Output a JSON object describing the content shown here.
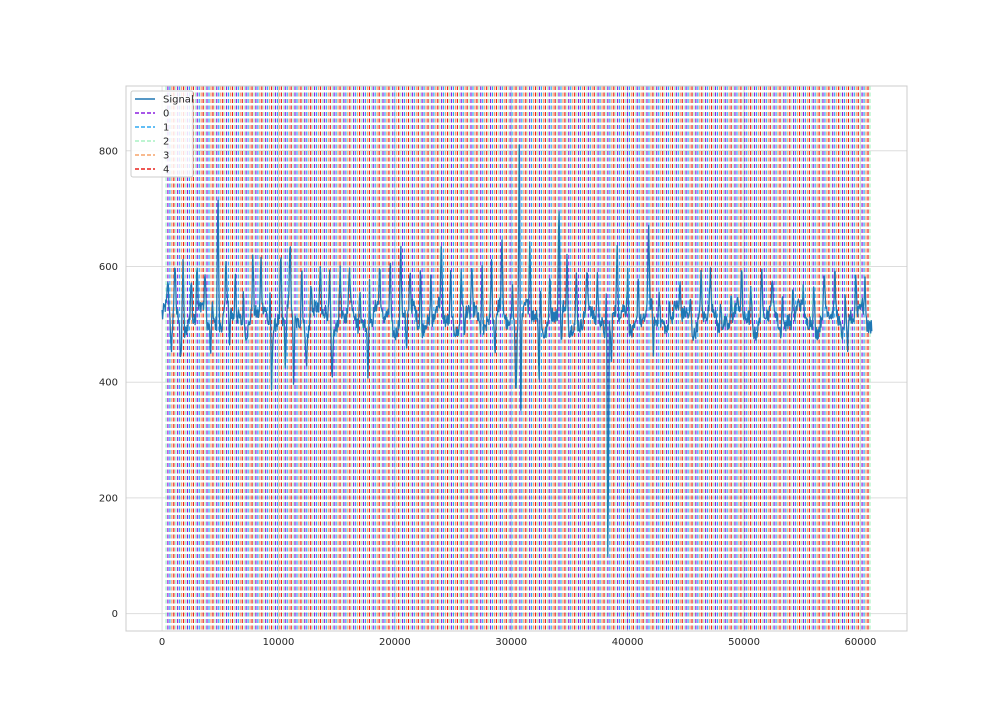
{
  "chart_data": {
    "type": "line",
    "title": "",
    "xlabel": "",
    "ylabel": "",
    "xlim": [
      -3100,
      64000
    ],
    "ylim": [
      -30,
      912
    ],
    "xticks": [
      0,
      10000,
      20000,
      30000,
      40000,
      50000,
      60000
    ],
    "yticks": [
      0,
      200,
      400,
      600,
      800
    ],
    "grid": true,
    "legend_position": "top-left",
    "series": [
      {
        "name": "Signal",
        "color": "#1f77b4",
        "style": "solid",
        "baseline": 510,
        "x_start": 0,
        "x_end": 61000,
        "peaks": [
          [
            500,
            560
          ],
          [
            1100,
            610
          ],
          [
            1800,
            640
          ],
          [
            2500,
            580
          ],
          [
            3000,
            610
          ],
          [
            3700,
            590
          ],
          [
            4300,
            570
          ],
          [
            4800,
            750
          ],
          [
            5500,
            600
          ],
          [
            6300,
            590
          ],
          [
            7000,
            580
          ],
          [
            7800,
            610
          ],
          [
            8500,
            600
          ],
          [
            9300,
            580
          ],
          [
            10200,
            640
          ],
          [
            11000,
            620
          ],
          [
            12000,
            610
          ],
          [
            12800,
            590
          ],
          [
            13600,
            600
          ],
          [
            14400,
            590
          ],
          [
            15300,
            600
          ],
          [
            16100,
            590
          ],
          [
            17000,
            590
          ],
          [
            17800,
            600
          ],
          [
            18700,
            590
          ],
          [
            19600,
            620
          ],
          [
            20500,
            640
          ],
          [
            21300,
            590
          ],
          [
            22200,
            630
          ],
          [
            23100,
            600
          ],
          [
            24000,
            620
          ],
          [
            24800,
            590
          ],
          [
            25700,
            600
          ],
          [
            26600,
            590
          ],
          [
            27500,
            620
          ],
          [
            28300,
            610
          ],
          [
            29200,
            620
          ],
          [
            30100,
            590
          ],
          [
            30700,
            870
          ],
          [
            31600,
            640
          ],
          [
            32500,
            600
          ],
          [
            33300,
            590
          ],
          [
            34100,
            710
          ],
          [
            34800,
            630
          ],
          [
            35600,
            600
          ],
          [
            36500,
            570
          ],
          [
            37400,
            590
          ],
          [
            38200,
            600
          ],
          [
            39100,
            620
          ],
          [
            40000,
            590
          ],
          [
            40900,
            590
          ],
          [
            41800,
            660
          ],
          [
            42700,
            580
          ],
          [
            43600,
            570
          ],
          [
            44500,
            560
          ],
          [
            45400,
            560
          ],
          [
            46300,
            590
          ],
          [
            47100,
            570
          ],
          [
            48000,
            560
          ],
          [
            48900,
            570
          ],
          [
            49800,
            590
          ],
          [
            50600,
            570
          ],
          [
            51500,
            590
          ],
          [
            52400,
            570
          ],
          [
            53300,
            580
          ],
          [
            54200,
            570
          ],
          [
            55100,
            560
          ],
          [
            56000,
            580
          ],
          [
            56900,
            570
          ],
          [
            57800,
            580
          ],
          [
            58700,
            570
          ],
          [
            59600,
            590
          ],
          [
            60400,
            570
          ]
        ],
        "dips": [
          [
            800,
            430
          ],
          [
            1600,
            440
          ],
          [
            4200,
            450
          ],
          [
            5800,
            440
          ],
          [
            9400,
            400
          ],
          [
            10600,
            410
          ],
          [
            11300,
            390
          ],
          [
            12400,
            440
          ],
          [
            14600,
            410
          ],
          [
            17700,
            410
          ],
          [
            21000,
            440
          ],
          [
            26000,
            460
          ],
          [
            28600,
            450
          ],
          [
            30400,
            380
          ],
          [
            30800,
            340
          ],
          [
            32400,
            390
          ],
          [
            34300,
            440
          ],
          [
            38300,
            80
          ],
          [
            38600,
            420
          ],
          [
            42200,
            440
          ],
          [
            58900,
            450
          ]
        ]
      },
      {
        "name": "0",
        "color": "#8c1fe0",
        "style": "dashed",
        "positions": {
          "start": 500,
          "end": 60900,
          "step": 840
        }
      },
      {
        "name": "1",
        "color": "#2ea8f2",
        "style": "dashed",
        "positions": {
          "start": 670,
          "end": 60900,
          "step": 840
        }
      },
      {
        "name": "2",
        "color": "#a8f2c4",
        "style": "dashed",
        "positions": {
          "start": 340,
          "end": 60900,
          "step": 840
        }
      },
      {
        "name": "3",
        "color": "#f5a46a",
        "style": "dashed",
        "positions": {
          "start": 840,
          "end": 60900,
          "step": 840
        }
      },
      {
        "name": "4",
        "color": "#e8201c",
        "style": "dashed",
        "positions": {
          "start": 1010,
          "end": 60900,
          "step": 840
        }
      }
    ]
  }
}
